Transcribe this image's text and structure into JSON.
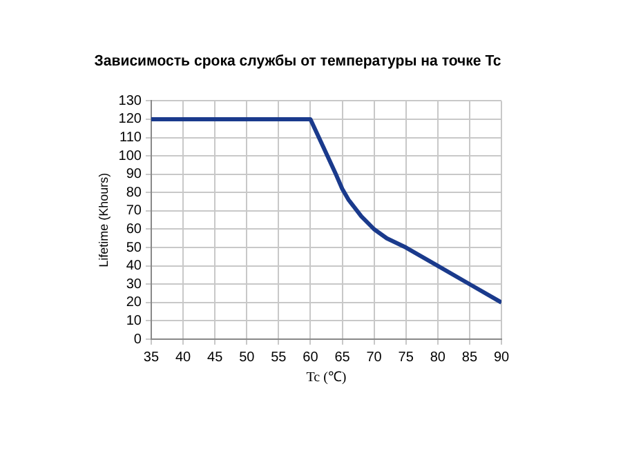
{
  "chart_data": {
    "type": "line",
    "title": "Зависимость срока службы от температуры на точке Tc",
    "xlabel": "Tc (℃)",
    "ylabel": "Lifetime (Khours)",
    "x": [
      35,
      60,
      62,
      64,
      65,
      66,
      68,
      70,
      72,
      75,
      80,
      85,
      90
    ],
    "series": [
      {
        "color": "#1a3a8c",
        "values": [
          120,
          120,
          105,
          90,
          82,
          76,
          67,
          60,
          55,
          50,
          40,
          30,
          20
        ]
      }
    ],
    "xlim": [
      35,
      90
    ],
    "xticks": [
      35,
      40,
      45,
      50,
      55,
      60,
      65,
      70,
      75,
      80,
      85,
      90
    ],
    "ylim": [
      0,
      130
    ],
    "yticks": [
      0,
      10,
      20,
      30,
      40,
      50,
      60,
      70,
      80,
      90,
      100,
      110,
      120,
      130
    ],
    "grid": true,
    "legend": false,
    "marker": "none",
    "line_style": "solid"
  }
}
